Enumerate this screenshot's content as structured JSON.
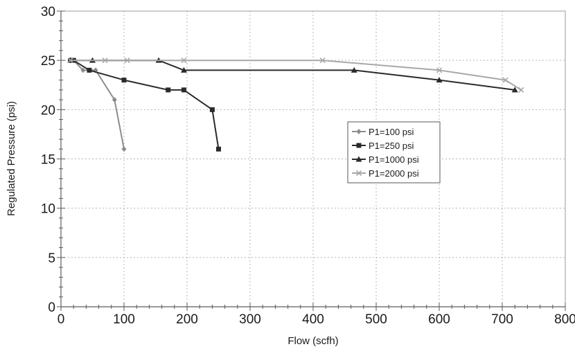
{
  "chart_data": {
    "type": "line",
    "xlabel": "Flow (scfh)",
    "ylabel": "Regulated Pressure (psi)",
    "xlim": [
      0,
      800
    ],
    "ylim": [
      0,
      30
    ],
    "xticks": [
      0,
      100,
      200,
      300,
      400,
      500,
      600,
      700,
      800
    ],
    "yticks": [
      0,
      5,
      10,
      15,
      20,
      25,
      30
    ],
    "grid": true,
    "legend_position": "right-center",
    "series": [
      {
        "name": "P1=100 psi",
        "color": "#8c8c8c",
        "marker": "diamond",
        "x": [
          15,
          20,
          35,
          55,
          85,
          100
        ],
        "y": [
          25,
          25,
          24,
          24,
          21,
          16
        ]
      },
      {
        "name": "P1=250 psi",
        "color": "#2a2a2a",
        "marker": "square",
        "x": [
          15,
          20,
          45,
          100,
          170,
          195,
          240,
          250
        ],
        "y": [
          25,
          25,
          24,
          23,
          22,
          22,
          20,
          16
        ]
      },
      {
        "name": "P1=1000 psi",
        "color": "#2a2a2a",
        "marker": "triangle",
        "x": [
          15,
          50,
          155,
          195,
          465,
          600,
          720
        ],
        "y": [
          25,
          25,
          25,
          24,
          24,
          23,
          22
        ]
      },
      {
        "name": "P1=2000 psi",
        "color": "#a8a8a8",
        "marker": "x",
        "x": [
          15,
          70,
          105,
          195,
          415,
          600,
          705,
          730
        ],
        "y": [
          25,
          25,
          25,
          25,
          25,
          24,
          23,
          22
        ]
      }
    ]
  }
}
